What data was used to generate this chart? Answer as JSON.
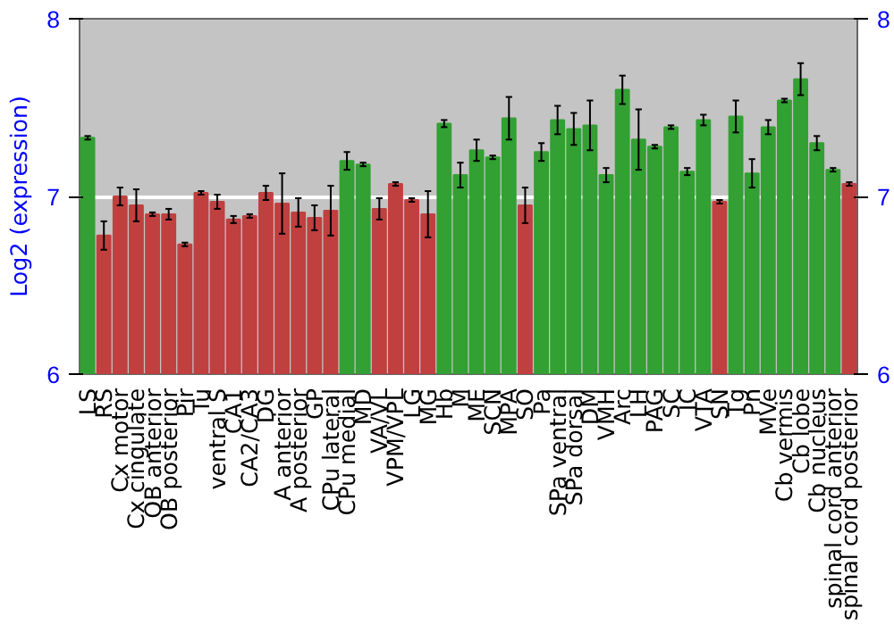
{
  "chart_data": {
    "type": "bar",
    "ylabel": "Log2 (expression)",
    "categories": [
      "LS",
      "RS",
      "Cx motor",
      "Cx cingulate",
      "OB anterior",
      "OB posterior",
      "Pir",
      "Tu",
      "ventral S",
      "CA1",
      "CA2/CA3",
      "DG",
      "A anterior",
      "A posterior",
      "GP",
      "CPu lateral",
      "CPu medial",
      "MD",
      "VA/VL",
      "VPM/VPL",
      "LG",
      "MG",
      "Hb",
      "M",
      "ME",
      "SCN",
      "MPA",
      "SO",
      "Pa",
      "SPa ventral",
      "SPa dorsal",
      "DM",
      "VMH",
      "Arc",
      "LH",
      "PAG",
      "SC",
      "IC",
      "VTA",
      "SN",
      "Tg",
      "Pn",
      "MVe",
      "Cb vermis",
      "Cb lobe",
      "Cb nucleus",
      "spinal cord anterior",
      "spinal cord posterior"
    ],
    "values": [
      7.33,
      6.78,
      7.0,
      6.95,
      6.9,
      6.9,
      6.73,
      7.02,
      6.97,
      6.87,
      6.89,
      7.02,
      6.96,
      6.91,
      6.88,
      6.92,
      7.2,
      7.18,
      6.93,
      7.07,
      6.98,
      6.9,
      7.41,
      7.12,
      7.26,
      7.22,
      7.44,
      6.95,
      7.25,
      7.43,
      7.38,
      7.4,
      7.12,
      7.6,
      7.32,
      7.28,
      7.39,
      7.14,
      7.43,
      6.97,
      7.45,
      7.13,
      7.39,
      7.54,
      7.66,
      7.3,
      7.15,
      7.07
    ],
    "errors": [
      0.01,
      0.08,
      0.05,
      0.09,
      0.01,
      0.03,
      0.01,
      0.01,
      0.04,
      0.02,
      0.01,
      0.04,
      0.17,
      0.08,
      0.07,
      0.14,
      0.05,
      0.01,
      0.06,
      0.01,
      0.01,
      0.13,
      0.02,
      0.07,
      0.06,
      0.01,
      0.12,
      0.1,
      0.05,
      0.08,
      0.09,
      0.14,
      0.04,
      0.08,
      0.17,
      0.01,
      0.01,
      0.02,
      0.03,
      0.01,
      0.09,
      0.08,
      0.04,
      0.01,
      0.09,
      0.04,
      0.01,
      0.01
    ],
    "colors": [
      "#33a033",
      "#c04040",
      "#c04040",
      "#c04040",
      "#c04040",
      "#c04040",
      "#c04040",
      "#c04040",
      "#c04040",
      "#c04040",
      "#c04040",
      "#c04040",
      "#c04040",
      "#c04040",
      "#c04040",
      "#c04040",
      "#33a033",
      "#33a033",
      "#c04040",
      "#c04040",
      "#c04040",
      "#c04040",
      "#33a033",
      "#33a033",
      "#33a033",
      "#33a033",
      "#33a033",
      "#c04040",
      "#33a033",
      "#33a033",
      "#33a033",
      "#33a033",
      "#33a033",
      "#33a033",
      "#33a033",
      "#33a033",
      "#33a033",
      "#33a033",
      "#33a033",
      "#c04040",
      "#33a033",
      "#33a033",
      "#33a033",
      "#33a033",
      "#33a033",
      "#33a033",
      "#33a033",
      "#c04040"
    ],
    "ylim": [
      6,
      8
    ],
    "yticks": [
      6,
      7,
      8
    ],
    "y2lim": [
      6,
      8
    ],
    "y2ticks": [
      6,
      7,
      8
    ],
    "grid": "y"
  }
}
